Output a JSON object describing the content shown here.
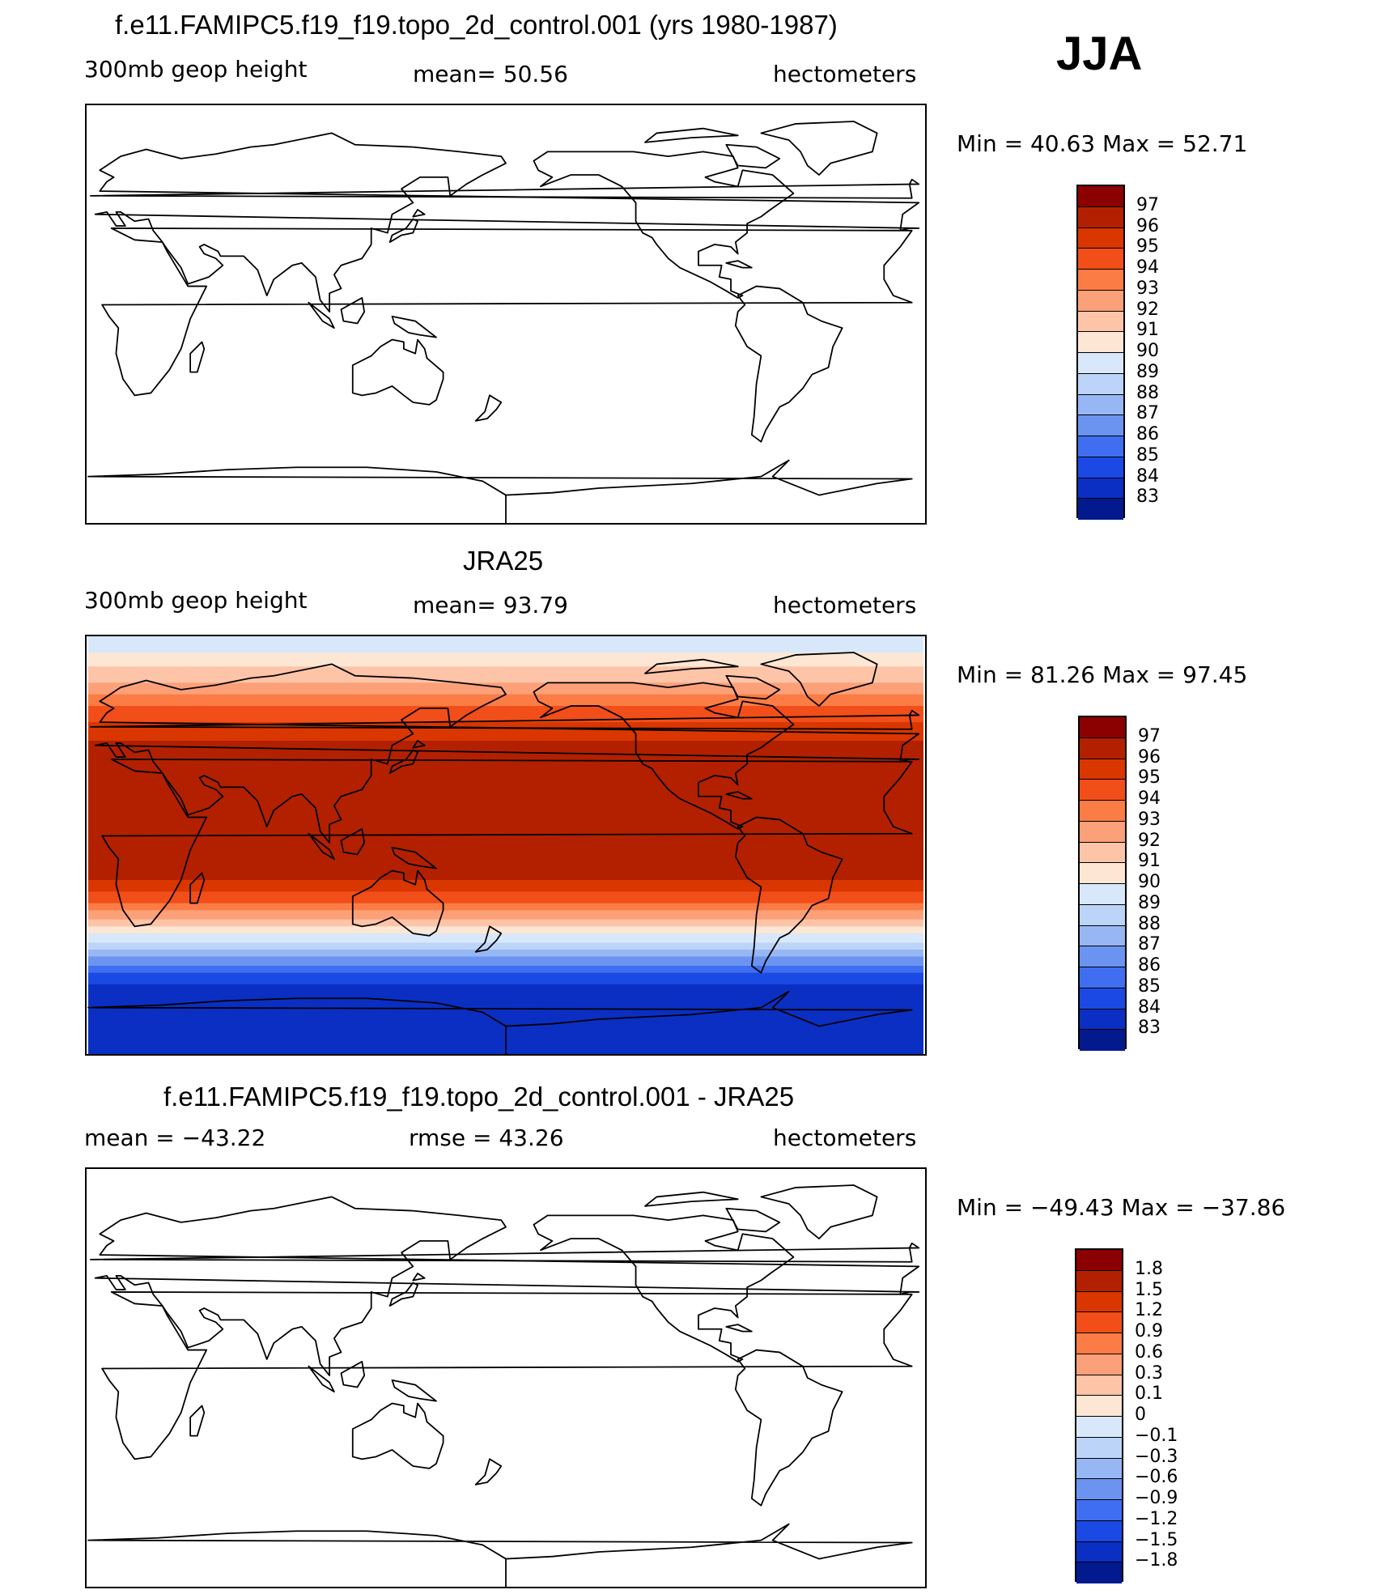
{
  "season": "JJA",
  "panels": [
    {
      "title": "f.e11.FAMIPC5.f19_f19.topo_2d_control.001 (yrs 1980-1987)",
      "left_label": "300mb  geop  height",
      "center_label": "mean=   50.56",
      "right_label": "hectometers",
      "minmax": "Min  =    40.63  Max  =    52.71",
      "field": "empty"
    },
    {
      "title": "JRA25",
      "left_label": "300mb  geop  height",
      "center_label": "mean=   93.79",
      "right_label": "hectometers",
      "minmax": "Min  =    81.26  Max  =    97.45",
      "field": "filled"
    },
    {
      "title": "f.e11.FAMIPC5.f19_f19.topo_2d_control.001 - JRA25",
      "left_label": "mean  =  −43.22",
      "center_label": "rmse  =    43.26",
      "right_label": "hectometers",
      "minmax": "Min  =  −49.43  Max  =  −37.86",
      "field": "empty"
    }
  ],
  "colorbar_colors": [
    "#8b0000",
    "#b32000",
    "#d93600",
    "#f14e1a",
    "#fb7c45",
    "#fca079",
    "#fdc4a8",
    "#fde6d4",
    "#d8e8fa",
    "#bcd4f7",
    "#97b7f4",
    "#6b94f0",
    "#3f6ef0",
    "#1b49e4",
    "#0a2fc2",
    "#021a8e"
  ],
  "colorbar_levels": {
    "absolute": [
      "97",
      "96",
      "95",
      "94",
      "93",
      "92",
      "91",
      "90",
      "89",
      "88",
      "87",
      "86",
      "85",
      "84",
      "83"
    ],
    "difference": [
      "1.8",
      "1.5",
      "1.2",
      "0.9",
      "0.6",
      "0.3",
      "0.1",
      "0",
      "−0.1",
      "−0.3",
      "−0.6",
      "−0.9",
      "−1.2",
      "−1.5",
      "−1.8"
    ]
  },
  "chart_data": {
    "type": "map",
    "variable": "300mb geop height",
    "units": "hectometers",
    "season": "JJA",
    "panels": [
      {
        "name": "f.e11.FAMIPC5.f19_f19.topo_2d_control.001 (yrs 1980-1987)",
        "mean": 50.56,
        "min": 40.63,
        "max": 52.71
      },
      {
        "name": "JRA25",
        "mean": 93.79,
        "min": 81.26,
        "max": 97.45,
        "zonal_bands_lat_value": [
          [
            90,
            89
          ],
          [
            80,
            90.5
          ],
          [
            70,
            92
          ],
          [
            60,
            94
          ],
          [
            45,
            96
          ],
          [
            30,
            97
          ],
          [
            15,
            96
          ],
          [
            0,
            96
          ],
          [
            -15,
            96
          ],
          [
            -25,
            94
          ],
          [
            -35,
            91
          ],
          [
            -45,
            88
          ],
          [
            -55,
            85
          ],
          [
            -65,
            83
          ],
          [
            -80,
            83
          ]
        ]
      },
      {
        "name": "f.e11.FAMIPC5.f19_f19.topo_2d_control.001 - JRA25",
        "mean": -43.22,
        "rmse": 43.26,
        "min": -49.43,
        "max": -37.86
      }
    ],
    "contour_levels_absolute": [
      83,
      84,
      85,
      86,
      87,
      88,
      89,
      90,
      91,
      92,
      93,
      94,
      95,
      96,
      97
    ],
    "contour_levels_difference": [
      -1.8,
      -1.5,
      -1.2,
      -0.9,
      -0.6,
      -0.3,
      -0.1,
      0,
      0.1,
      0.3,
      0.6,
      0.9,
      1.2,
      1.5,
      1.8
    ]
  }
}
